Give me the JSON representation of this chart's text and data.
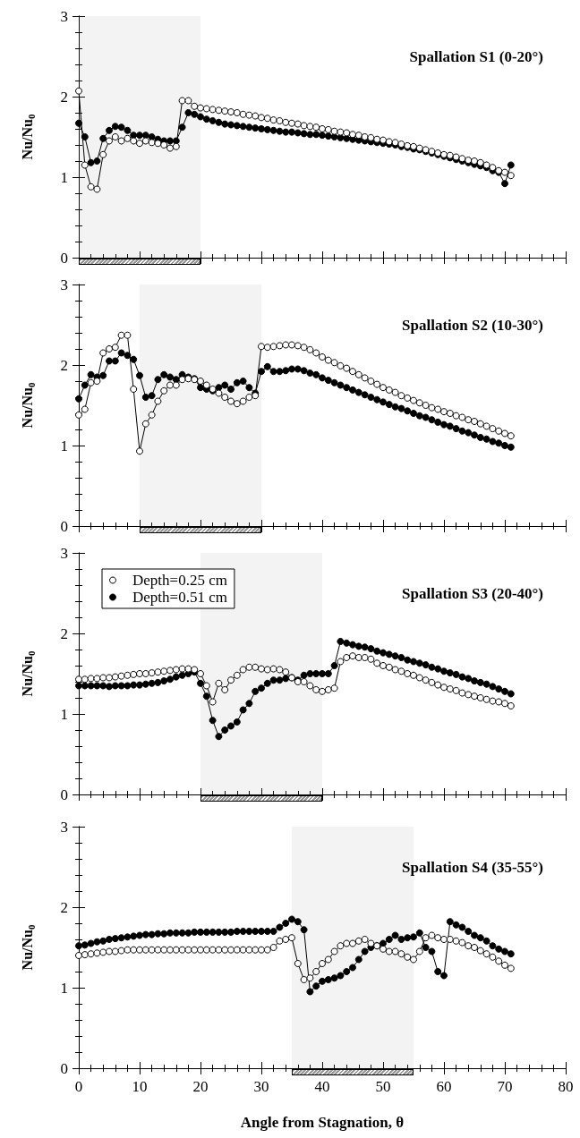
{
  "chart_data": [
    {
      "type": "line",
      "title": "Spallation S1 (0-20°)",
      "ylabel": "Nu/Nu$_{0}$",
      "x": [
        0,
        1,
        2,
        3,
        4,
        5,
        6,
        7,
        8,
        9,
        10,
        11,
        12,
        13,
        14,
        15,
        16,
        17,
        18,
        19,
        20,
        21,
        22,
        23,
        24,
        25,
        26,
        27,
        28,
        29,
        30,
        31,
        32,
        33,
        34,
        35,
        36,
        37,
        38,
        39,
        40,
        41,
        42,
        43,
        44,
        45,
        46,
        47,
        48,
        49,
        50,
        51,
        52,
        53,
        54,
        55,
        56,
        57,
        58,
        59,
        60,
        61,
        62,
        63,
        64,
        65,
        66,
        67,
        68,
        69,
        70,
        71
      ],
      "series": [
        {
          "color": "#000000",
          "values": [
            2.07,
            1.15,
            0.88,
            0.85,
            1.28,
            1.45,
            1.5,
            1.45,
            1.48,
            1.45,
            1.42,
            1.45,
            1.43,
            1.42,
            1.4,
            1.36,
            1.38,
            1.95,
            1.95,
            1.88,
            1.86,
            1.85,
            1.84,
            1.83,
            1.82,
            1.81,
            1.8,
            1.78,
            1.77,
            1.76,
            1.74,
            1.73,
            1.71,
            1.7,
            1.68,
            1.67,
            1.66,
            1.64,
            1.63,
            1.62,
            1.6,
            1.59,
            1.57,
            1.56,
            1.55,
            1.53,
            1.52,
            1.5,
            1.49,
            1.47,
            1.46,
            1.44,
            1.43,
            1.41,
            1.39,
            1.38,
            1.36,
            1.34,
            1.32,
            1.3,
            1.28,
            1.27,
            1.25,
            1.23,
            1.21,
            1.2,
            1.18,
            1.15,
            1.12,
            1.08,
            1.06,
            1.02
          ]
        },
        {
          "color": "#000000",
          "values": [
            1.67,
            1.5,
            1.18,
            1.2,
            1.48,
            1.58,
            1.63,
            1.62,
            1.58,
            1.52,
            1.52,
            1.52,
            1.5,
            1.47,
            1.45,
            1.45,
            1.45,
            1.62,
            1.8,
            1.78,
            1.75,
            1.72,
            1.7,
            1.68,
            1.66,
            1.65,
            1.64,
            1.63,
            1.62,
            1.61,
            1.6,
            1.59,
            1.58,
            1.57,
            1.56,
            1.56,
            1.55,
            1.54,
            1.53,
            1.53,
            1.52,
            1.51,
            1.5,
            1.49,
            1.48,
            1.47,
            1.46,
            1.45,
            1.44,
            1.43,
            1.42,
            1.41,
            1.4,
            1.38,
            1.37,
            1.35,
            1.34,
            1.32,
            1.3,
            1.28,
            1.26,
            1.24,
            1.22,
            1.2,
            1.18,
            1.16,
            1.14,
            1.12,
            1.08,
            1.06,
            0.92,
            1.15
          ]
        }
      ],
      "xlim": [
        0,
        80
      ],
      "xticks": [
        0,
        10,
        20,
        30,
        40,
        50,
        60,
        70,
        80
      ],
      "ylim": [
        0,
        3
      ],
      "yticks": [
        0,
        1,
        2,
        3
      ],
      "bands": [
        {
          "axis": "x",
          "from": 0,
          "to": 20,
          "label": null,
          "color": "#999999"
        }
      ],
      "marker": "circle",
      "line_style": "solid",
      "grid": false,
      "legend": false,
      "tick_labels": "y"
    },
    {
      "type": "line",
      "title": "Spallation S2 (10-30°)",
      "ylabel": "Nu/Nu$_{0}$",
      "x": [
        0,
        1,
        2,
        3,
        4,
        5,
        6,
        7,
        8,
        9,
        10,
        11,
        12,
        13,
        14,
        15,
        16,
        17,
        18,
        19,
        20,
        21,
        22,
        23,
        24,
        25,
        26,
        27,
        28,
        29,
        30,
        31,
        32,
        33,
        34,
        35,
        36,
        37,
        38,
        39,
        40,
        41,
        42,
        43,
        44,
        45,
        46,
        47,
        48,
        49,
        50,
        51,
        52,
        53,
        54,
        55,
        56,
        57,
        58,
        59,
        60,
        61,
        62,
        63,
        64,
        65,
        66,
        67,
        68,
        69,
        70,
        71
      ],
      "series": [
        {
          "color": "#000000",
          "values": [
            1.38,
            1.45,
            1.78,
            1.8,
            2.15,
            2.2,
            2.22,
            2.37,
            2.37,
            1.7,
            0.93,
            1.27,
            1.38,
            1.55,
            1.68,
            1.75,
            1.75,
            1.82,
            1.83,
            1.82,
            1.8,
            1.75,
            1.7,
            1.65,
            1.6,
            1.55,
            1.52,
            1.55,
            1.6,
            1.62,
            2.23,
            2.22,
            2.23,
            2.24,
            2.25,
            2.25,
            2.24,
            2.22,
            2.19,
            2.15,
            2.1,
            2.06,
            2.03,
            1.99,
            1.96,
            1.92,
            1.88,
            1.84,
            1.8,
            1.76,
            1.72,
            1.69,
            1.66,
            1.62,
            1.59,
            1.56,
            1.53,
            1.5,
            1.47,
            1.45,
            1.42,
            1.4,
            1.37,
            1.35,
            1.32,
            1.3,
            1.27,
            1.24,
            1.21,
            1.18,
            1.15,
            1.12
          ]
        },
        {
          "color": "#000000",
          "values": [
            1.58,
            1.75,
            1.88,
            1.85,
            1.87,
            2.05,
            2.05,
            2.15,
            2.12,
            2.07,
            1.87,
            1.6,
            1.62,
            1.82,
            1.88,
            1.85,
            1.82,
            1.88,
            1.85,
            1.83,
            1.72,
            1.7,
            1.68,
            1.72,
            1.75,
            1.7,
            1.78,
            1.8,
            1.72,
            1.65,
            1.92,
            1.98,
            1.92,
            1.92,
            1.93,
            1.95,
            1.95,
            1.93,
            1.9,
            1.88,
            1.84,
            1.81,
            1.78,
            1.75,
            1.72,
            1.69,
            1.66,
            1.63,
            1.6,
            1.57,
            1.54,
            1.51,
            1.48,
            1.46,
            1.43,
            1.4,
            1.37,
            1.35,
            1.32,
            1.29,
            1.26,
            1.24,
            1.21,
            1.18,
            1.16,
            1.13,
            1.1,
            1.08,
            1.05,
            1.03,
            1.0,
            0.98
          ]
        }
      ],
      "xlim": [
        0,
        80
      ],
      "xticks": [
        0,
        10,
        20,
        30,
        40,
        50,
        60,
        70,
        80
      ],
      "ylim": [
        0,
        3
      ],
      "yticks": [
        0,
        1,
        2,
        3
      ],
      "bands": [
        {
          "axis": "x",
          "from": 10,
          "to": 30,
          "label": null,
          "color": "#999999"
        }
      ],
      "marker": "circle",
      "line_style": "solid",
      "grid": false,
      "legend": false,
      "tick_labels": "y"
    },
    {
      "type": "line",
      "title": "Spallation S3 (20-40°)",
      "ylabel": "Nu/Nu$_{0}$",
      "x": [
        0,
        1,
        2,
        3,
        4,
        5,
        6,
        7,
        8,
        9,
        10,
        11,
        12,
        13,
        14,
        15,
        16,
        17,
        18,
        19,
        20,
        21,
        22,
        23,
        24,
        25,
        26,
        27,
        28,
        29,
        30,
        31,
        32,
        33,
        34,
        35,
        36,
        37,
        38,
        39,
        40,
        41,
        42,
        43,
        44,
        45,
        46,
        47,
        48,
        49,
        50,
        51,
        52,
        53,
        54,
        55,
        56,
        57,
        58,
        59,
        60,
        61,
        62,
        63,
        64,
        65,
        66,
        67,
        68,
        69,
        70,
        71
      ],
      "series": [
        {
          "name": "Depth=0.25 cm",
          "color": "#000000",
          "values": [
            1.43,
            1.43,
            1.44,
            1.44,
            1.45,
            1.45,
            1.46,
            1.47,
            1.48,
            1.49,
            1.5,
            1.5,
            1.51,
            1.52,
            1.53,
            1.54,
            1.55,
            1.56,
            1.56,
            1.55,
            1.5,
            1.35,
            1.15,
            1.38,
            1.3,
            1.42,
            1.48,
            1.55,
            1.58,
            1.58,
            1.56,
            1.55,
            1.56,
            1.55,
            1.52,
            1.45,
            1.4,
            1.4,
            1.35,
            1.3,
            1.28,
            1.3,
            1.32,
            1.65,
            1.7,
            1.72,
            1.7,
            1.7,
            1.68,
            1.63,
            1.6,
            1.58,
            1.55,
            1.53,
            1.5,
            1.48,
            1.45,
            1.42,
            1.39,
            1.36,
            1.33,
            1.31,
            1.29,
            1.26,
            1.24,
            1.22,
            1.2,
            1.18,
            1.16,
            1.15,
            1.13,
            1.1
          ]
        },
        {
          "name": "Depth=0.51 cm",
          "color": "#000000",
          "values": [
            1.35,
            1.35,
            1.35,
            1.35,
            1.35,
            1.34,
            1.35,
            1.35,
            1.35,
            1.36,
            1.36,
            1.37,
            1.38,
            1.39,
            1.41,
            1.43,
            1.46,
            1.48,
            1.5,
            1.52,
            1.38,
            1.22,
            0.92,
            0.72,
            0.8,
            0.85,
            0.9,
            1.05,
            1.13,
            1.28,
            1.32,
            1.38,
            1.42,
            1.42,
            1.44,
            1.45,
            1.42,
            1.48,
            1.5,
            1.5,
            1.5,
            1.5,
            1.6,
            1.9,
            1.88,
            1.86,
            1.84,
            1.83,
            1.81,
            1.78,
            1.76,
            1.74,
            1.72,
            1.7,
            1.67,
            1.65,
            1.63,
            1.61,
            1.58,
            1.56,
            1.53,
            1.51,
            1.49,
            1.46,
            1.44,
            1.41,
            1.39,
            1.37,
            1.34,
            1.31,
            1.28,
            1.25
          ]
        }
      ],
      "xlim": [
        0,
        80
      ],
      "xticks": [
        0,
        10,
        20,
        30,
        40,
        50,
        60,
        70,
        80
      ],
      "ylim": [
        0,
        3
      ],
      "yticks": [
        0,
        1,
        2,
        3
      ],
      "bands": [
        {
          "axis": "x",
          "from": 20,
          "to": 40,
          "label": null,
          "color": "#999999"
        }
      ],
      "marker": "circle",
      "line_style": "solid",
      "grid": false,
      "legend": "top left",
      "tick_labels": "y"
    },
    {
      "type": "line",
      "title": "Spallation S4 (35-55°)",
      "ylabel": "Nu/Nu$_{0}$",
      "xlabel": "Angle from Stagnation, θ",
      "x": [
        0,
        1,
        2,
        3,
        4,
        5,
        6,
        7,
        8,
        9,
        10,
        11,
        12,
        13,
        14,
        15,
        16,
        17,
        18,
        19,
        20,
        21,
        22,
        23,
        24,
        25,
        26,
        27,
        28,
        29,
        30,
        31,
        32,
        33,
        34,
        35,
        36,
        37,
        38,
        39,
        40,
        41,
        42,
        43,
        44,
        45,
        46,
        47,
        48,
        49,
        50,
        51,
        52,
        53,
        54,
        55,
        56,
        57,
        58,
        59,
        60,
        61,
        62,
        63,
        64,
        65,
        66,
        67,
        68,
        69,
        70,
        71
      ],
      "series": [
        {
          "color": "#000000",
          "values": [
            1.4,
            1.41,
            1.42,
            1.43,
            1.44,
            1.45,
            1.45,
            1.46,
            1.47,
            1.47,
            1.47,
            1.47,
            1.47,
            1.47,
            1.47,
            1.47,
            1.47,
            1.47,
            1.47,
            1.47,
            1.47,
            1.47,
            1.47,
            1.47,
            1.47,
            1.47,
            1.47,
            1.47,
            1.47,
            1.47,
            1.47,
            1.47,
            1.5,
            1.58,
            1.6,
            1.62,
            1.3,
            1.1,
            1.12,
            1.2,
            1.3,
            1.35,
            1.45,
            1.52,
            1.55,
            1.55,
            1.58,
            1.6,
            1.55,
            1.52,
            1.48,
            1.45,
            1.45,
            1.42,
            1.38,
            1.35,
            1.45,
            1.62,
            1.65,
            1.62,
            1.6,
            1.6,
            1.58,
            1.56,
            1.52,
            1.5,
            1.46,
            1.42,
            1.38,
            1.33,
            1.28,
            1.24
          ]
        },
        {
          "color": "#000000",
          "values": [
            1.52,
            1.53,
            1.55,
            1.57,
            1.58,
            1.6,
            1.61,
            1.62,
            1.63,
            1.64,
            1.65,
            1.66,
            1.66,
            1.67,
            1.67,
            1.68,
            1.68,
            1.68,
            1.68,
            1.69,
            1.69,
            1.69,
            1.69,
            1.69,
            1.69,
            1.69,
            1.7,
            1.7,
            1.7,
            1.7,
            1.7,
            1.7,
            1.7,
            1.75,
            1.8,
            1.85,
            1.82,
            1.72,
            0.95,
            1.02,
            1.08,
            1.1,
            1.12,
            1.15,
            1.2,
            1.25,
            1.35,
            1.45,
            1.5,
            1.52,
            1.55,
            1.6,
            1.65,
            1.6,
            1.62,
            1.63,
            1.68,
            1.5,
            1.45,
            1.2,
            1.15,
            1.82,
            1.78,
            1.75,
            1.7,
            1.65,
            1.62,
            1.58,
            1.52,
            1.48,
            1.45,
            1.42
          ]
        }
      ],
      "xlim": [
        0,
        80
      ],
      "xticks": [
        0,
        10,
        20,
        30,
        40,
        50,
        60,
        70,
        80
      ],
      "ylim": [
        0,
        3
      ],
      "yticks": [
        0,
        1,
        2,
        3
      ],
      "bands": [
        {
          "axis": "x",
          "from": 35,
          "to": 55,
          "label": null,
          "color": "#999999"
        }
      ],
      "marker": "circle",
      "line_style": "solid",
      "grid": false,
      "legend": false
    }
  ]
}
